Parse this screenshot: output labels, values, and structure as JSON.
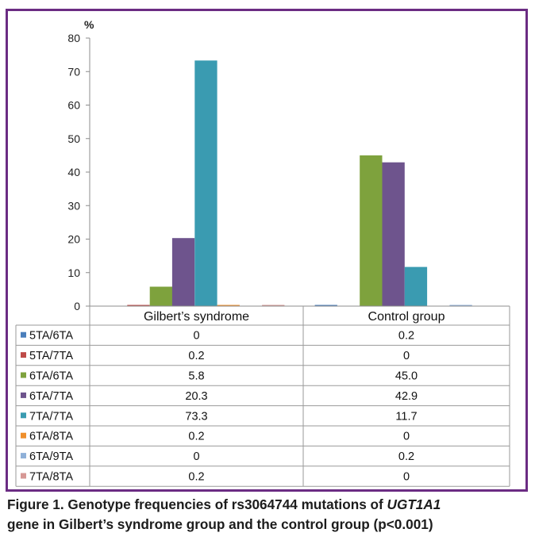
{
  "chart_data": {
    "type": "bar",
    "ylabel": "%",
    "ylim": [
      0,
      80
    ],
    "yticks": [
      "0",
      "10",
      "20",
      "30",
      "40",
      "50",
      "60",
      "70",
      "80"
    ],
    "categories": [
      "Gilbert’s syndrome",
      "Control group"
    ],
    "series": [
      {
        "name": "5TA/6TA",
        "color": "#4a7ebb",
        "values": [
          0,
          0.2
        ],
        "labels": [
          "0",
          "0.2"
        ]
      },
      {
        "name": "5TA/7TA",
        "color": "#be4b48",
        "values": [
          0.2,
          0
        ],
        "labels": [
          "0.2",
          "0"
        ]
      },
      {
        "name": "6TA/6TA",
        "color": "#7ea23d",
        "values": [
          5.8,
          45.0
        ],
        "labels": [
          "5.8",
          "45.0"
        ]
      },
      {
        "name": "6TA/7TA",
        "color": "#6e548d",
        "values": [
          20.3,
          42.9
        ],
        "labels": [
          "20.3",
          "42.9"
        ]
      },
      {
        "name": "7TA/7TA",
        "color": "#3a9bb1",
        "values": [
          73.3,
          11.7
        ],
        "labels": [
          "73.3",
          "11.7"
        ]
      },
      {
        "name": "6TA/8TA",
        "color": "#ef8f2c",
        "values": [
          0.2,
          0
        ],
        "labels": [
          "0.2",
          "0"
        ]
      },
      {
        "name": "6TA/9TA",
        "color": "#8fb0d8",
        "values": [
          0,
          0.2
        ],
        "labels": [
          "0",
          "0.2"
        ]
      },
      {
        "name": "7TA/8TA",
        "color": "#d69895",
        "values": [
          0.2,
          0
        ],
        "labels": [
          "0.2",
          "0"
        ]
      }
    ]
  },
  "caption": {
    "part1": "Figure 1. Genotype frequencies of rs3064744 mutations of ",
    "gene": "UGT1A1",
    "part2": "gene in Gilbert’s syndrome group and the control group (p<0.001)"
  }
}
